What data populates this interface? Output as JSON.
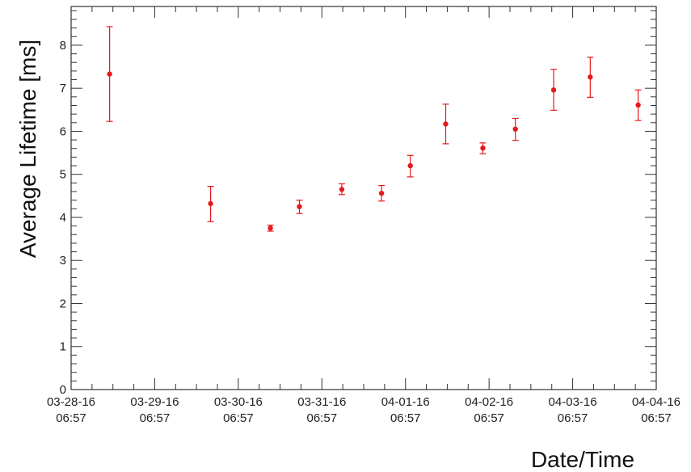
{
  "chart_data": {
    "type": "scatter",
    "xlabel": "Date/Time",
    "ylabel": "Average Lifetime [ms]",
    "x_range": [
      "03-28-16 06:57",
      "04-04-16 06:57"
    ],
    "ylim": [
      0,
      8.9
    ],
    "y_ticks": [
      0,
      1,
      2,
      3,
      4,
      5,
      6,
      7,
      8
    ],
    "x_ticks": [
      {
        "date": "03-28-16",
        "time": "06:57"
      },
      {
        "date": "03-29-16",
        "time": "06:57"
      },
      {
        "date": "03-30-16",
        "time": "06:57"
      },
      {
        "date": "03-31-16",
        "time": "06:57"
      },
      {
        "date": "04-01-16",
        "time": "06:57"
      },
      {
        "date": "04-02-16",
        "time": "06:57"
      },
      {
        "date": "04-03-16",
        "time": "06:57"
      },
      {
        "date": "04-04-16",
        "time": "06:57"
      }
    ],
    "grid": false,
    "marker_color": "#e41a1c",
    "points": [
      {
        "x": "03-28-16 18:00",
        "y": 7.33,
        "err_low": 6.23,
        "err_high": 8.43
      },
      {
        "x": "03-29-16 23:00",
        "y": 4.32,
        "err_low": 3.9,
        "err_high": 4.72
      },
      {
        "x": "03-30-16 16:10",
        "y": 3.75,
        "err_low": 3.68,
        "err_high": 3.82
      },
      {
        "x": "03-31-16 00:30",
        "y": 4.25,
        "err_low": 4.09,
        "err_high": 4.4
      },
      {
        "x": "03-31-16 12:40",
        "y": 4.65,
        "err_low": 4.53,
        "err_high": 4.78
      },
      {
        "x": "04-01-16 00:05",
        "y": 4.56,
        "err_low": 4.38,
        "err_high": 4.74
      },
      {
        "x": "04-01-16 08:20",
        "y": 5.2,
        "err_low": 4.94,
        "err_high": 5.44
      },
      {
        "x": "04-01-16 18:30",
        "y": 6.17,
        "err_low": 5.71,
        "err_high": 6.63
      },
      {
        "x": "04-02-16 05:10",
        "y": 5.61,
        "err_low": 5.48,
        "err_high": 5.73
      },
      {
        "x": "04-02-16 14:30",
        "y": 6.05,
        "err_low": 5.79,
        "err_high": 6.3
      },
      {
        "x": "04-03-16 01:30",
        "y": 6.96,
        "err_low": 6.49,
        "err_high": 7.44
      },
      {
        "x": "04-03-16 12:00",
        "y": 7.26,
        "err_low": 6.79,
        "err_high": 7.72
      },
      {
        "x": "04-04-16 01:45",
        "y": 6.61,
        "err_low": 6.25,
        "err_high": 6.96
      }
    ]
  }
}
